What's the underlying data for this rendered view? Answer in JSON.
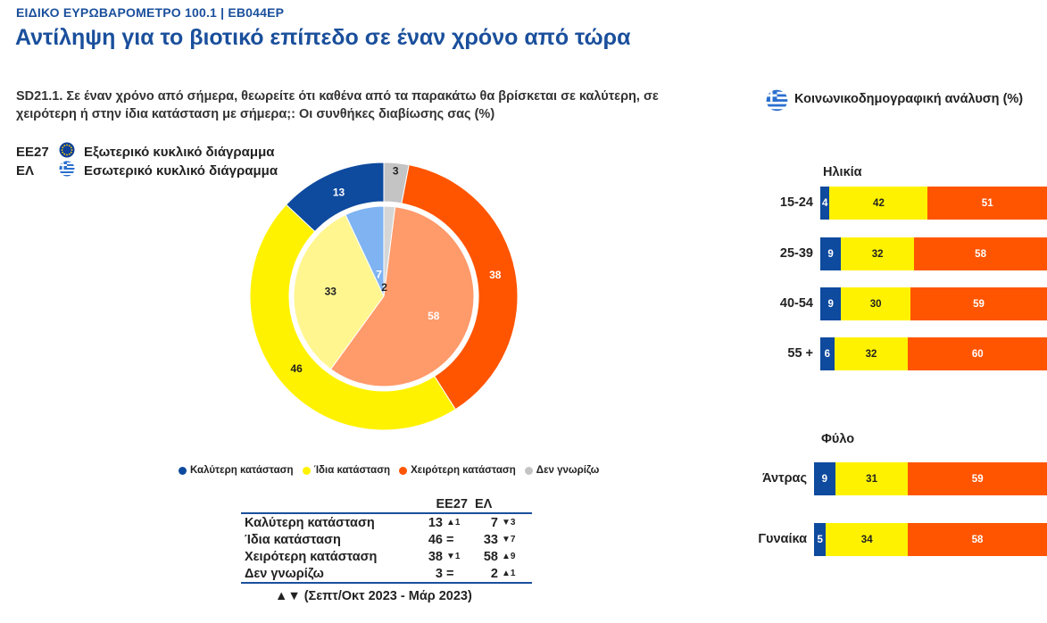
{
  "header": {
    "subtitle": "ΕΙΔΙΚΟ ΕΥΡΩΒΑΡΟΜΕΤΡΟ 100.1 | EB044EP",
    "title": "Αντίληψη για το βιοτικό επίπεδο σε έναν χρόνο από τώρα"
  },
  "question": "SD21.1. Σε έναν χρόνο από σήμερα, θεωρείτε ότι καθένα από τα παρακάτω θα βρίσκεται σε καλύτερη, σε χειρότερη ή στην ίδια κατάσταση με σήμερα;: Οι συνθήκες διαβίωσης σας (%)",
  "ring_legend": {
    "eu_code": "ΕΕ27",
    "eu_label": "Εξωτερικό κυκλικό διάγραμμα",
    "gr_code": "ΕΛ",
    "gr_label": "Εσωτερικό κυκλικό διάγραμμα"
  },
  "colors": {
    "better": "#0e4a9e",
    "same": "#fff200",
    "worse": "#ff5500",
    "dk": "#c4c4c4",
    "better_in": "#7fb3f2",
    "same_in": "#fff690",
    "worse_in": "#ff9a6a",
    "dk_in": "#d6d6d6",
    "brand": "#1a4f9c"
  },
  "bottom_legend": [
    "Καλύτερη κατάσταση",
    "Ίδια κατάσταση",
    "Χειρότερη κατάσταση",
    "Δεν γνωρίζω"
  ],
  "table": {
    "col_eu": "ΕΕ27",
    "col_gr": "ΕΛ",
    "rows": [
      {
        "label": "Καλύτερη κατάσταση",
        "eu": "13",
        "eu_chg": "▲1",
        "gr": "7",
        "gr_chg": "▼3"
      },
      {
        "label": "Ίδια κατάσταση",
        "eu": "46",
        "eu_chg": "=",
        "gr": "33",
        "gr_chg": "▼7"
      },
      {
        "label": "Χειρότερη κατάσταση",
        "eu": "38",
        "eu_chg": "▼1",
        "gr": "58",
        "gr_chg": "▲9"
      },
      {
        "label": "Δεν γνωρίζω",
        "eu": "3",
        "eu_chg": "=",
        "gr": "2",
        "gr_chg": "▲1"
      }
    ],
    "footnote": "▲▼ (Σεπτ/Οκτ 2023 - Μάρ 2023)"
  },
  "socio": {
    "title": "Κοινωνικοδημογραφική ανάλυση (%)",
    "age_label": "Ηλικία",
    "gender_label": "Φύλο"
  },
  "chart_data": [
    {
      "type": "pie",
      "title": "ΕΕ27 - Εξωτερικό κυκλικό διάγραμμα",
      "categories": [
        "Καλύτερη κατάσταση",
        "Ίδια κατάσταση",
        "Χειρότερη κατάσταση",
        "Δεν γνωρίζω"
      ],
      "values": [
        13,
        46,
        38,
        3
      ]
    },
    {
      "type": "pie",
      "title": "ΕΛ - Εσωτερικό κυκλικό διάγραμμα",
      "categories": [
        "Καλύτερη κατάσταση",
        "Ίδια κατάσταση",
        "Χειρότερη κατάσταση",
        "Δεν γνωρίζω"
      ],
      "values": [
        7,
        33,
        58,
        2
      ]
    },
    {
      "type": "bar",
      "stacked": true,
      "orientation": "horizontal",
      "title": "Ηλικία",
      "categories": [
        "15-24",
        "25-39",
        "40-54",
        "55 +"
      ],
      "series": [
        {
          "name": "Καλύτερη κατάσταση",
          "values": [
            4,
            9,
            9,
            6
          ]
        },
        {
          "name": "Ίδια κατάσταση",
          "values": [
            42,
            32,
            30,
            32
          ]
        },
        {
          "name": "Χειρότερη κατάσταση",
          "values": [
            51,
            58,
            59,
            60
          ]
        }
      ]
    },
    {
      "type": "bar",
      "stacked": true,
      "orientation": "horizontal",
      "title": "Φύλο",
      "categories": [
        "Άντρας",
        "Γυναίκα"
      ],
      "series": [
        {
          "name": "Καλύτερη κατάσταση",
          "values": [
            9,
            5
          ]
        },
        {
          "name": "Ίδια κατάσταση",
          "values": [
            31,
            34
          ]
        },
        {
          "name": "Χειρότερη κατάσταση",
          "values": [
            59,
            58
          ]
        }
      ]
    }
  ]
}
